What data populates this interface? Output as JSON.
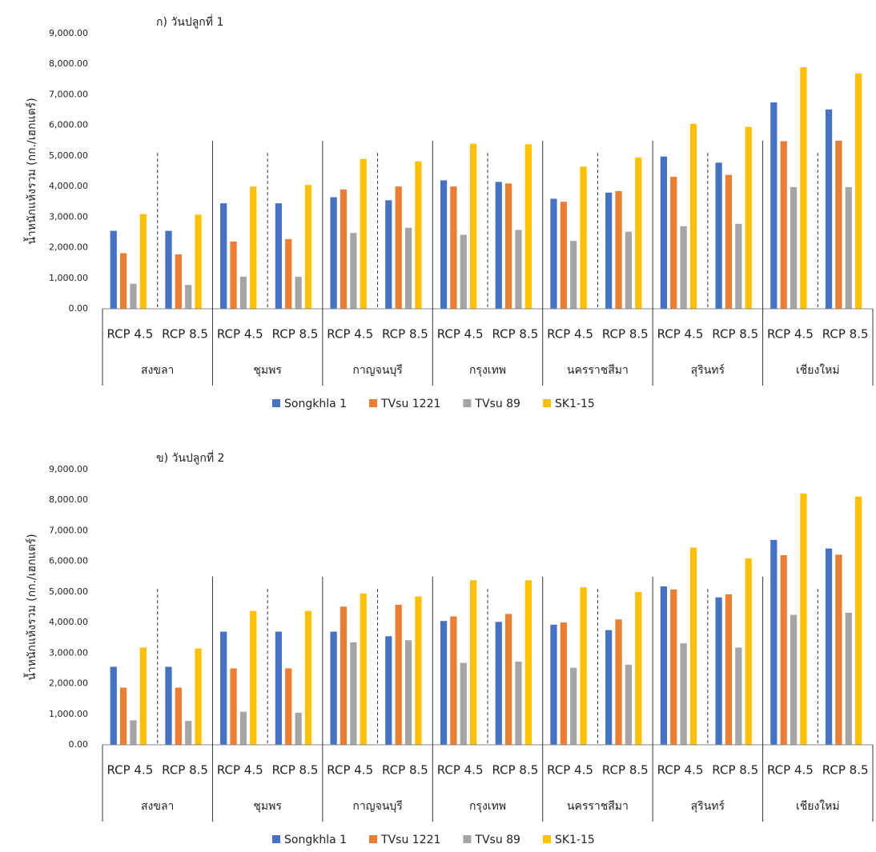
{
  "chart_data": [
    {
      "type": "bar",
      "title": "ก) วันปลูกที่ 1",
      "y_label": "น้ำหนักแห้งรวม (กก./เฮกแตร์)",
      "categories": [
        "RCP 4.5",
        "RCP 8.5",
        "RCP 4.5",
        "RCP 8.5",
        "RCP 4.5",
        "RCP 8.5",
        "RCP 4.5",
        "RCP 8.5",
        "RCP 4.5",
        "RCP 8.5",
        "RCP 4.5",
        "RCP 8.5",
        "RCP 4.5",
        "RCP 8.5"
      ],
      "groups": [
        "สงขลา",
        "ชุมพร",
        "กาญจนบุรี",
        "กรุงเทพ",
        "นครราชสีมา",
        "สุรินทร์",
        "เชียงใหม่"
      ],
      "series": [
        {
          "name": "Songkhla 1",
          "color": "#4472c4",
          "values": [
            2550,
            2550,
            3450,
            3450,
            3650,
            3550,
            4200,
            4150,
            3600,
            3800,
            4980,
            4780,
            6750,
            6520
          ]
        },
        {
          "name": "TVsu 1221",
          "color": "#ed7d31",
          "values": [
            1820,
            1780,
            2200,
            2280,
            3900,
            4000,
            4000,
            4100,
            3500,
            3850,
            4320,
            4380,
            5480,
            5500
          ]
        },
        {
          "name": "TVsu 89",
          "color": "#a5a5a5",
          "values": [
            820,
            780,
            1050,
            1050,
            2480,
            2650,
            2420,
            2580,
            2220,
            2520,
            2700,
            2780,
            3980,
            3980
          ]
        },
        {
          "name": "SK1-15",
          "color": "#ffc000",
          "values": [
            3100,
            3080,
            4000,
            4050,
            4900,
            4820,
            5400,
            5380,
            4650,
            4950,
            6050,
            5950,
            7900,
            7700
          ]
        }
      ],
      "ylim": [
        0,
        9000
      ],
      "yticks": [
        {
          "value": 0,
          "label": "0.00"
        },
        {
          "value": 1000,
          "label": "1,000.00"
        },
        {
          "value": 2000,
          "label": "2,000.00"
        },
        {
          "value": 3000,
          "label": "3,000.00"
        },
        {
          "value": 4000,
          "label": "4,000.00"
        },
        {
          "value": 5000,
          "label": "5,000.00"
        },
        {
          "value": 6000,
          "label": "6,000.00"
        },
        {
          "value": 7000,
          "label": "7,000.00"
        },
        {
          "value": 8000,
          "label": "8,000.00"
        },
        {
          "value": 9000,
          "label": "9,000.00"
        }
      ],
      "grid": false,
      "legend": "bottom"
    },
    {
      "type": "bar",
      "title": "ข) วันปลูกที่ 2",
      "y_label": "น้ำหนักแห้งรวม (กก./เฮกแตร์)",
      "categories": [
        "RCP 4.5",
        "RCP 8.5",
        "RCP 4.5",
        "RCP 8.5",
        "RCP 4.5",
        "RCP 8.5",
        "RCP 4.5",
        "RCP 8.5",
        "RCP 4.5",
        "RCP 8.5",
        "RCP 4.5",
        "RCP 8.5",
        "RCP 4.5",
        "RCP 8.5"
      ],
      "groups": [
        "สงขลา",
        "ชุมพร",
        "กาญจนบุรี",
        "กรุงเทพ",
        "นครราชสีมา",
        "สุรินทร์",
        "เชียงใหม่"
      ],
      "series": [
        {
          "name": "Songkhla 1",
          "color": "#4472c4",
          "values": [
            2550,
            2550,
            3700,
            3700,
            3700,
            3550,
            4050,
            4020,
            3930,
            3750,
            5180,
            4820,
            6700,
            6420
          ]
        },
        {
          "name": "TVsu 1221",
          "color": "#ed7d31",
          "values": [
            1870,
            1870,
            2500,
            2500,
            4520,
            4580,
            4200,
            4280,
            4000,
            4100,
            5080,
            4920,
            6200,
            6220
          ]
        },
        {
          "name": "TVsu 89",
          "color": "#a5a5a5",
          "values": [
            800,
            780,
            1080,
            1050,
            3350,
            3420,
            2680,
            2720,
            2520,
            2620,
            3320,
            3180,
            4250,
            4320
          ]
        },
        {
          "name": "SK1-15",
          "color": "#ffc000",
          "values": [
            3180,
            3150,
            4380,
            4380,
            4950,
            4850,
            5380,
            5380,
            5150,
            5000,
            6450,
            6100,
            8220,
            8120
          ]
        }
      ],
      "ylim": [
        0,
        9000
      ],
      "yticks": [
        {
          "value": 0,
          "label": "0.00"
        },
        {
          "value": 1000,
          "label": "1,000.00"
        },
        {
          "value": 2000,
          "label": "2,000.00"
        },
        {
          "value": 3000,
          "label": "3,000.00"
        },
        {
          "value": 4000,
          "label": "4,000.00"
        },
        {
          "value": 5000,
          "label": "5,000.00"
        },
        {
          "value": 6000,
          "label": "6,000.00"
        },
        {
          "value": 7000,
          "label": "7,000.00"
        },
        {
          "value": 8000,
          "label": "8,000.00"
        },
        {
          "value": 9000,
          "label": "9,000.00"
        }
      ],
      "grid": false,
      "legend": "bottom"
    }
  ]
}
